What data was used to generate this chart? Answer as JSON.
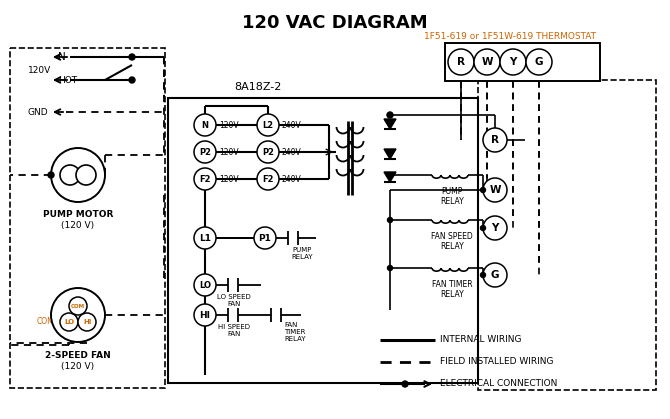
{
  "title": "120 VAC DIAGRAM",
  "bg_color": "#ffffff",
  "line_color": "#000000",
  "orange_color": "#cc6600",
  "thermostat_label": "1F51-619 or 1F51W-619 THERMOSTAT",
  "control_box_label": "8A18Z-2",
  "legend_items": [
    {
      "label": "INTERNAL WIRING",
      "style": "solid"
    },
    {
      "label": "FIELD INSTALLED WIRING",
      "style": "dashed"
    },
    {
      "label": "ELECTRICAL CONNECTION",
      "style": "arrow"
    }
  ]
}
